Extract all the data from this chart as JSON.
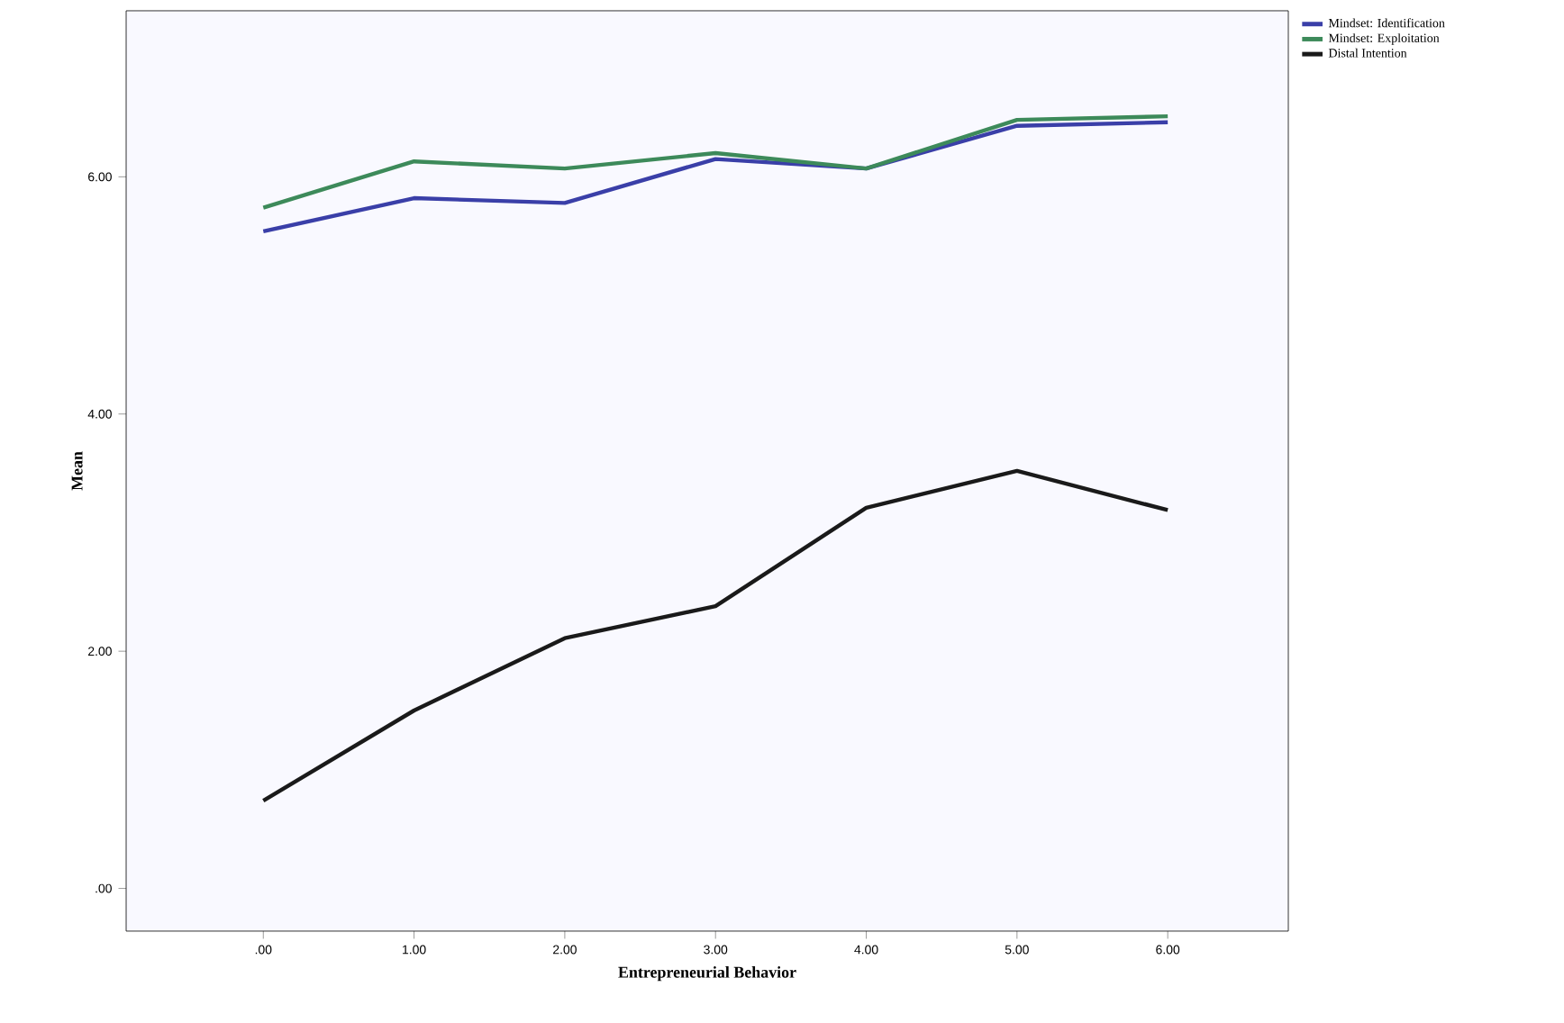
{
  "chart_data": {
    "type": "line",
    "xlabel": "Entrepreneurial Behavior",
    "ylabel": "Mean",
    "x": [
      0,
      1,
      2,
      3,
      4,
      5,
      6
    ],
    "xlim": [
      -0.91,
      6.8
    ],
    "ylim": [
      -0.36,
      7.4
    ],
    "xticks": [
      {
        "value": 0,
        "label": ".00"
      },
      {
        "value": 1,
        "label": "1.00"
      },
      {
        "value": 2,
        "label": "2.00"
      },
      {
        "value": 3,
        "label": "3.00"
      },
      {
        "value": 4,
        "label": "4.00"
      },
      {
        "value": 5,
        "label": "5.00"
      },
      {
        "value": 6,
        "label": "6.00"
      }
    ],
    "yticks": [
      {
        "value": 0,
        "label": ".00"
      },
      {
        "value": 2,
        "label": "2.00"
      },
      {
        "value": 4,
        "label": "4.00"
      },
      {
        "value": 6,
        "label": "6.00"
      }
    ],
    "series": [
      {
        "name": "Mindset: Identification",
        "color": "#3a3fa8",
        "values": [
          5.54,
          5.82,
          5.78,
          6.15,
          6.07,
          6.43,
          6.46
        ]
      },
      {
        "name": "Mindset: Exploitation",
        "color": "#3d8a5a",
        "values": [
          5.74,
          6.13,
          6.07,
          6.2,
          6.07,
          6.48,
          6.51
        ]
      },
      {
        "name": "Distal Intention",
        "color": "#1a1a1a",
        "values": [
          0.74,
          1.5,
          2.11,
          2.38,
          3.21,
          3.52,
          3.19
        ]
      }
    ],
    "legend": "top right",
    "grid": false,
    "marker": "none",
    "line_style": "solid"
  }
}
